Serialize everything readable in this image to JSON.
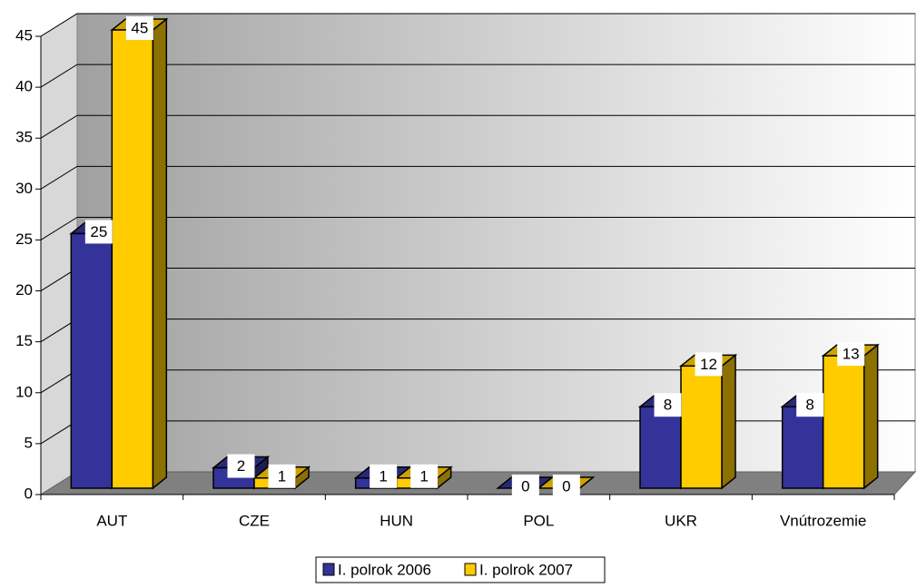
{
  "chart_data": {
    "type": "bar3d",
    "categories": [
      "AUT",
      "CZE",
      "HUN",
      "POL",
      "UKR",
      "Vnútrozemie"
    ],
    "series": [
      {
        "name": "I. polrok 2006",
        "color": "#333399",
        "values": [
          25,
          2,
          1,
          0,
          8,
          8
        ]
      },
      {
        "name": "I. polrok 2007",
        "color": "#ffcc00",
        "values": [
          45,
          1,
          1,
          0,
          12,
          13
        ]
      }
    ],
    "ylim": [
      0,
      45
    ],
    "yticks": [
      0,
      5,
      10,
      15,
      20,
      25,
      30,
      35,
      40,
      45
    ],
    "grid": true,
    "legend": "bottom"
  }
}
